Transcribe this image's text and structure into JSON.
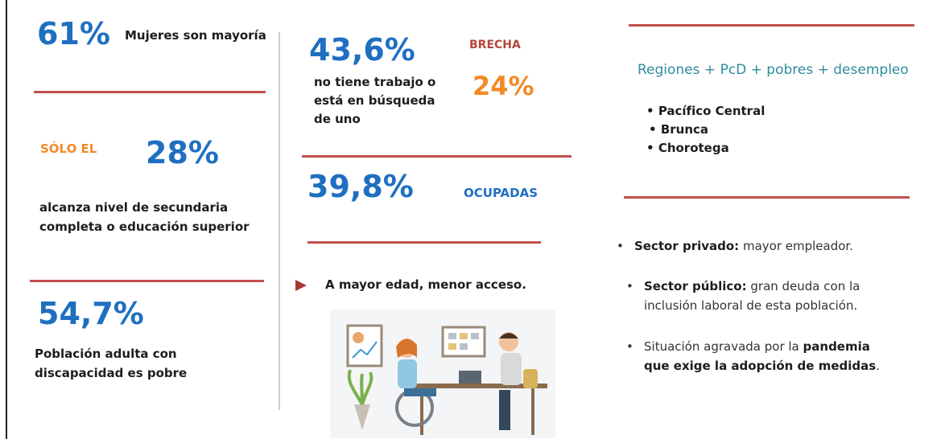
{
  "left": {
    "women": {
      "value": "61%",
      "label": "Mujeres son mayoría"
    },
    "education": {
      "prefix": "SÓLO EL",
      "value": "28%",
      "text_lines": [
        "alcanza nivel de secundaria",
        "completa o educación superior"
      ]
    },
    "poverty": {
      "value": "54,7%",
      "text_lines": [
        "Población adulta con",
        "discapacidad es pobre"
      ]
    }
  },
  "middle": {
    "unemployed": {
      "value": "43,6%",
      "text_lines": [
        "no tiene trabajo o",
        "está en búsqueda",
        "de uno"
      ]
    },
    "gap": {
      "label": "BRECHA",
      "value": "24%"
    },
    "employed": {
      "value": "39,8%",
      "label": "OCUPADAS"
    },
    "age_note": "A mayor edad, menor acceso."
  },
  "right": {
    "regions": {
      "title": "Regiones + PcD + pobres + desempleo",
      "items": [
        "Pacífico Central",
        "Brunca",
        "Chorotega"
      ]
    },
    "sectors": [
      {
        "lines": [
          [
            {
              "text": "Sector privado:",
              "bold": true
            },
            {
              "text": " mayor empleador."
            }
          ]
        ]
      },
      {
        "lines": [
          [
            {
              "text": "Sector público:",
              "bold": true
            },
            {
              "text": " gran deuda con la"
            }
          ],
          [
            {
              "text": "inclusión laboral de esta población."
            }
          ]
        ]
      },
      {
        "lines": [
          [
            {
              "text": "Situación agravada por la "
            },
            {
              "text": "pandemia",
              "bold": true
            }
          ],
          [
            {
              "text": "que exige la adopción de medidas",
              "bold": true
            },
            {
              "text": "."
            }
          ]
        ]
      }
    ]
  }
}
